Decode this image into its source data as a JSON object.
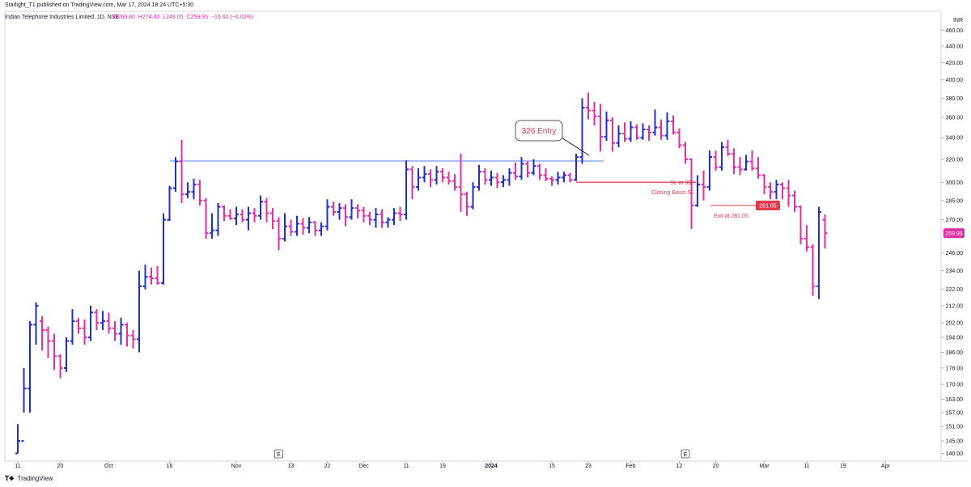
{
  "header": {
    "published": "Starlight_T1 published on TradingView.com, Mar 17, 2024 18:24 UTC+5:30",
    "symbol": "Indian Telephone Industries Limited, 1D, NSE",
    "ohlc": {
      "o": "O269.80",
      "h": "H274.40",
      "l": "L249.05",
      "c": "C259.95",
      "chg": "−16.60 (−6.00%)"
    }
  },
  "footer": {
    "brand": "TradingView",
    "logo_icon": "tradingview-logo-icon"
  },
  "colors": {
    "up": "#1f2ed6",
    "down": "#e62ea4",
    "resistance": "#7a96f0",
    "stop": "#e03a4e"
  },
  "chart_data": {
    "type": "ohlc-bar",
    "currency": "INR",
    "y_scale": "log",
    "ylim": [
      137,
      485
    ],
    "y_ticks": [
      "140.00",
      "145.00",
      "151.00",
      "157.00",
      "163.00",
      "170.00",
      "178.00",
      "186.00",
      "194.00",
      "202.00",
      "212.00",
      "222.00",
      "234.00",
      "246.00",
      "259.95",
      "270.00",
      "285.00",
      "300.00",
      "320.00",
      "340.00",
      "360.00",
      "380.00",
      "400.00",
      "420.00",
      "440.00",
      "460.00"
    ],
    "last_price_label": "259.95",
    "x_ticks": [
      {
        "label": "11",
        "i": 0
      },
      {
        "label": "20",
        "i": 7
      },
      {
        "label": "Oct",
        "i": 15
      },
      {
        "label": "16",
        "i": 25
      },
      {
        "label": "Nov",
        "i": 36
      },
      {
        "label": "13",
        "i": 45
      },
      {
        "label": "22",
        "i": 51
      },
      {
        "label": "Dec",
        "i": 57
      },
      {
        "label": "11",
        "i": 64
      },
      {
        "label": "19",
        "i": 70
      },
      {
        "label": "2024",
        "i": 78
      },
      {
        "label": "15",
        "i": 88
      },
      {
        "label": "23",
        "i": 94
      },
      {
        "label": "Feb",
        "i": 101
      },
      {
        "label": "12",
        "i": 109
      },
      {
        "label": "20",
        "i": 115
      },
      {
        "label": "Mar",
        "i": 123
      },
      {
        "label": "11",
        "i": 130
      },
      {
        "label": "19",
        "i": 136
      },
      {
        "label": "Apr",
        "i": 143
      }
    ],
    "earnings_markers": [
      {
        "label": "E",
        "i": 43
      },
      {
        "label": "E",
        "i": 110
      }
    ],
    "bars": [
      [
        140,
        152,
        140,
        145
      ],
      [
        145,
        178,
        157,
        168
      ],
      [
        168,
        203,
        157,
        201
      ],
      [
        201,
        214,
        190,
        212
      ],
      [
        203,
        206,
        187,
        198
      ],
      [
        198,
        200,
        183,
        192
      ],
      [
        192,
        196,
        177,
        184
      ],
      [
        184,
        185,
        173,
        178
      ],
      [
        178,
        194,
        176,
        192
      ],
      [
        192,
        210,
        190,
        203
      ],
      [
        203,
        205,
        196,
        199
      ],
      [
        199,
        204,
        190,
        194
      ],
      [
        194,
        212,
        192,
        208
      ],
      [
        208,
        210,
        198,
        202
      ],
      [
        202,
        209,
        198,
        203
      ],
      [
        203,
        208,
        196,
        199
      ],
      [
        199,
        203,
        192,
        196
      ],
      [
        196,
        205,
        190,
        201
      ],
      [
        201,
        202,
        189,
        195
      ],
      [
        195,
        198,
        188,
        193
      ],
      [
        193,
        234,
        186,
        224
      ],
      [
        224,
        238,
        222,
        230
      ],
      [
        230,
        236,
        225,
        229
      ],
      [
        229,
        237,
        225,
        226
      ],
      [
        226,
        275,
        225,
        270
      ],
      [
        270,
        297,
        269,
        295
      ],
      [
        295,
        322,
        292,
        318
      ],
      [
        318,
        338,
        283,
        290
      ],
      [
        290,
        300,
        287,
        292
      ],
      [
        292,
        303,
        286,
        298
      ],
      [
        298,
        302,
        281,
        285
      ],
      [
        285,
        287,
        256,
        260
      ],
      [
        260,
        275,
        256,
        262
      ],
      [
        262,
        283,
        258,
        280
      ],
      [
        280,
        281,
        269,
        273
      ],
      [
        273,
        278,
        270,
        271
      ],
      [
        271,
        280,
        266,
        274
      ],
      [
        274,
        278,
        268,
        270
      ],
      [
        270,
        280,
        262,
        275
      ],
      [
        275,
        279,
        268,
        273
      ],
      [
        273,
        289,
        270,
        284
      ],
      [
        284,
        287,
        268,
        275
      ],
      [
        275,
        279,
        263,
        269
      ],
      [
        269,
        272,
        248,
        256
      ],
      [
        256,
        275,
        254,
        265
      ],
      [
        265,
        270,
        258,
        261
      ],
      [
        261,
        273,
        258,
        267
      ],
      [
        267,
        271,
        259,
        264
      ],
      [
        264,
        272,
        260,
        268
      ],
      [
        268,
        269,
        258,
        262
      ],
      [
        262,
        268,
        258,
        265
      ],
      [
        265,
        286,
        262,
        280
      ],
      [
        280,
        284,
        273,
        276
      ],
      [
        276,
        283,
        270,
        279
      ],
      [
        279,
        282,
        265,
        272
      ],
      [
        272,
        286,
        270,
        279
      ],
      [
        279,
        282,
        271,
        277
      ],
      [
        277,
        280,
        268,
        273
      ],
      [
        273,
        276,
        266,
        270
      ],
      [
        270,
        279,
        264,
        274
      ],
      [
        274,
        278,
        264,
        268
      ],
      [
        268,
        272,
        264,
        270
      ],
      [
        270,
        279,
        266,
        275
      ],
      [
        275,
        280,
        269,
        274
      ],
      [
        274,
        319,
        270,
        311
      ],
      [
        311,
        314,
        286,
        296
      ],
      [
        296,
        312,
        293,
        304
      ],
      [
        304,
        314,
        300,
        307
      ],
      [
        307,
        311,
        296,
        302
      ],
      [
        302,
        314,
        298,
        309
      ],
      [
        309,
        312,
        300,
        304
      ],
      [
        304,
        309,
        298,
        301
      ],
      [
        301,
        307,
        293,
        296
      ],
      [
        296,
        325,
        276,
        290
      ],
      [
        290,
        292,
        273,
        280
      ],
      [
        280,
        300,
        278,
        296
      ],
      [
        296,
        315,
        293,
        309
      ],
      [
        309,
        312,
        298,
        302
      ],
      [
        302,
        310,
        297,
        304
      ],
      [
        304,
        308,
        295,
        300
      ],
      [
        300,
        306,
        296,
        302
      ],
      [
        302,
        312,
        297,
        308
      ],
      [
        308,
        317,
        302,
        305
      ],
      [
        305,
        322,
        302,
        316
      ],
      [
        316,
        318,
        304,
        308
      ],
      [
        308,
        320,
        306,
        314
      ],
      [
        314,
        316,
        302,
        306
      ],
      [
        306,
        312,
        301,
        303
      ],
      [
        303,
        305,
        297,
        302
      ],
      [
        302,
        309,
        298,
        304
      ],
      [
        304,
        309,
        300,
        306
      ],
      [
        306,
        308,
        300,
        302
      ],
      [
        302,
        325,
        301,
        322
      ],
      [
        322,
        380,
        316,
        370
      ],
      [
        370,
        386,
        358,
        367
      ],
      [
        367,
        376,
        352,
        361
      ],
      [
        361,
        374,
        327,
        341
      ],
      [
        341,
        366,
        337,
        357
      ],
      [
        357,
        360,
        327,
        335
      ],
      [
        335,
        352,
        331,
        344
      ],
      [
        344,
        355,
        336,
        339
      ],
      [
        339,
        356,
        336,
        350
      ],
      [
        350,
        353,
        338,
        340
      ],
      [
        340,
        354,
        338,
        348
      ],
      [
        348,
        352,
        337,
        345
      ],
      [
        345,
        368,
        342,
        350
      ],
      [
        350,
        358,
        338,
        342
      ],
      [
        342,
        365,
        338,
        356
      ],
      [
        356,
        362,
        343,
        345
      ],
      [
        345,
        349,
        330,
        333
      ],
      [
        333,
        336,
        316,
        320
      ],
      [
        320,
        321,
        263,
        281
      ],
      [
        281,
        306,
        280,
        298
      ],
      [
        298,
        310,
        285,
        296
      ],
      [
        296,
        328,
        293,
        322
      ],
      [
        322,
        328,
        310,
        313
      ],
      [
        313,
        336,
        310,
        331
      ],
      [
        331,
        338,
        323,
        325
      ],
      [
        325,
        330,
        307,
        313
      ],
      [
        313,
        322,
        306,
        311
      ],
      [
        311,
        324,
        310,
        318
      ],
      [
        318,
        328,
        310,
        312
      ],
      [
        312,
        322,
        303,
        306
      ],
      [
        306,
        307,
        290,
        296
      ],
      [
        296,
        300,
        286,
        292
      ],
      [
        292,
        302,
        286,
        298
      ],
      [
        298,
        300,
        286,
        295
      ],
      [
        295,
        302,
        280,
        289
      ],
      [
        289,
        293,
        276,
        280
      ],
      [
        280,
        281,
        252,
        256
      ],
      [
        256,
        266,
        247,
        250
      ],
      [
        250,
        252,
        218,
        224
      ],
      [
        224,
        280,
        216,
        276
      ],
      [
        270,
        274,
        249,
        260
      ]
    ],
    "annotations": {
      "resistance_label": "",
      "entry_callout": "326 Entry",
      "sl_text": "SL at 300",
      "sl_sub": "Closing Basis SL",
      "exit_text": "Exit at 281.05",
      "exit_badge": "281.05"
    }
  }
}
